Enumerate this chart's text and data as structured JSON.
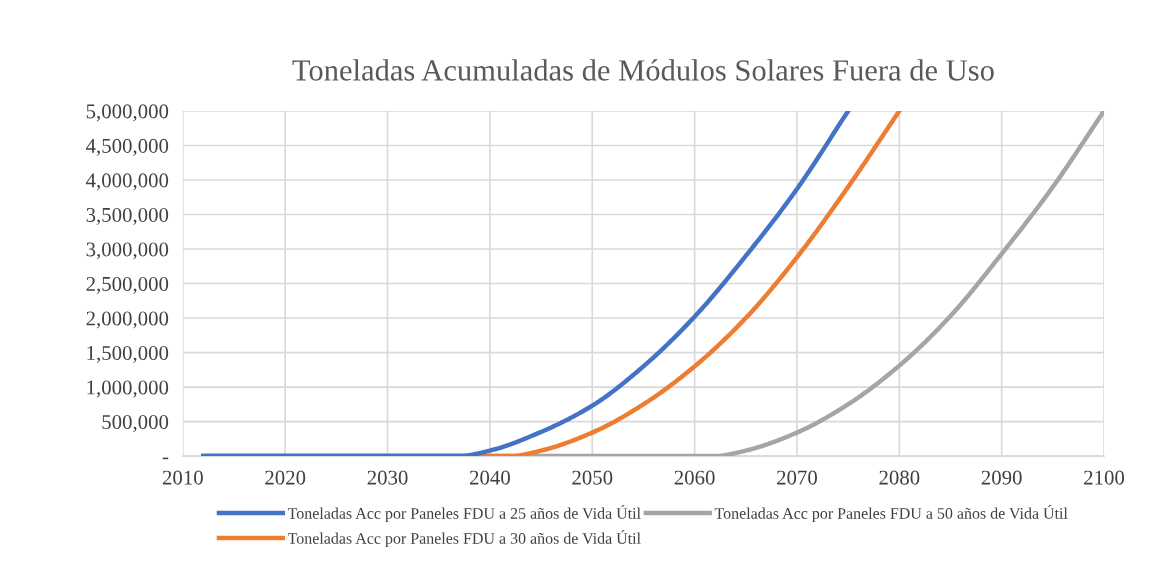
{
  "chart_data": {
    "type": "line",
    "title": "Toneladas Acumuladas de Módulos Solares Fuera de Uso",
    "series": [
      {
        "name": "Toneladas Acc por Paneles FDU a 25 años de Vida Útil",
        "color": "#4472c4",
        "x": [
          2012,
          2037,
          2040,
          2045,
          2050,
          2055,
          2060,
          2065,
          2070,
          2075
        ],
        "values": [
          0,
          0,
          80000,
          350000,
          730000,
          1300000,
          2020000,
          2900000,
          3870000,
          5000000
        ]
      },
      {
        "name": "Toneladas Acc por Paneles FDU a 30 años de Vida Útil",
        "color": "#ed7d31",
        "x": [
          2012,
          2042,
          2045,
          2050,
          2055,
          2060,
          2065,
          2070,
          2075,
          2080
        ],
        "values": [
          0,
          0,
          80000,
          340000,
          750000,
          1300000,
          2000000,
          2880000,
          3900000,
          5000000
        ]
      },
      {
        "name": "Toneladas Acc por Paneles FDU a 50 años de Vida Útil",
        "color": "#a5a5a5",
        "x": [
          2012,
          2062,
          2065,
          2070,
          2075,
          2080,
          2085,
          2090,
          2095,
          2100
        ],
        "values": [
          0,
          0,
          80000,
          340000,
          750000,
          1310000,
          2030000,
          2930000,
          3900000,
          5000000
        ]
      }
    ],
    "xlim": [
      2010,
      2100
    ],
    "xticks": [
      2010,
      2020,
      2030,
      2040,
      2050,
      2060,
      2070,
      2080,
      2090,
      2100
    ],
    "ylim": [
      0,
      5000000
    ],
    "yticks": [
      {
        "value": 0,
        "label": "-"
      },
      {
        "value": 500000,
        "label": "500,000"
      },
      {
        "value": 1000000,
        "label": "1,000,000"
      },
      {
        "value": 1500000,
        "label": "1,500,000"
      },
      {
        "value": 2000000,
        "label": "2,000,000"
      },
      {
        "value": 2500000,
        "label": "2,500,000"
      },
      {
        "value": 3000000,
        "label": "3,000,000"
      },
      {
        "value": 3500000,
        "label": "3,500,000"
      },
      {
        "value": 4000000,
        "label": "4,000,000"
      },
      {
        "value": 4500000,
        "label": "4,500,000"
      },
      {
        "value": 5000000,
        "label": "5,000,000"
      }
    ],
    "grid": true,
    "legend": "bottom",
    "marker": "none",
    "line_style": "solid"
  }
}
